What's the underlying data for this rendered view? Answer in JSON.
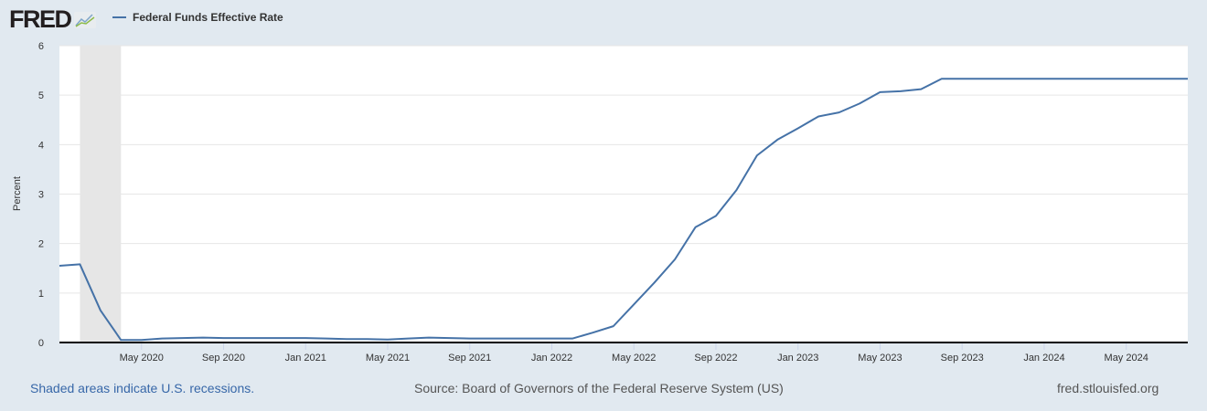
{
  "logo": {
    "text": "FRED"
  },
  "chart_data": {
    "type": "line",
    "title": "",
    "ylabel": "Percent",
    "xlabel": "",
    "ylim": [
      0,
      6
    ],
    "yticks": [
      "0",
      "1",
      "2",
      "3",
      "4",
      "5",
      "6"
    ],
    "grid": true,
    "legend_placement": "top-left",
    "x_start": "2020-01",
    "xticks": [
      {
        "month": "2020-05",
        "label": "May 2020"
      },
      {
        "month": "2020-09",
        "label": "Sep 2020"
      },
      {
        "month": "2021-01",
        "label": "Jan 2021"
      },
      {
        "month": "2021-05",
        "label": "May 2021"
      },
      {
        "month": "2021-09",
        "label": "Sep 2021"
      },
      {
        "month": "2022-01",
        "label": "Jan 2022"
      },
      {
        "month": "2022-05",
        "label": "May 2022"
      },
      {
        "month": "2022-09",
        "label": "Sep 2022"
      },
      {
        "month": "2023-01",
        "label": "Jan 2023"
      },
      {
        "month": "2023-05",
        "label": "May 2023"
      },
      {
        "month": "2023-09",
        "label": "Sep 2023"
      },
      {
        "month": "2024-01",
        "label": "Jan 2024"
      },
      {
        "month": "2024-05",
        "label": "May 2024"
      }
    ],
    "recessions": [
      {
        "start": "2020-02",
        "end": "2020-04"
      }
    ],
    "series": [
      {
        "name": "Federal Funds Effective Rate",
        "color": "#4572a7",
        "x": [
          "2020-01",
          "2020-02",
          "2020-03",
          "2020-04",
          "2020-05",
          "2020-06",
          "2020-07",
          "2020-08",
          "2020-09",
          "2020-10",
          "2020-11",
          "2020-12",
          "2021-01",
          "2021-02",
          "2021-03",
          "2021-04",
          "2021-05",
          "2021-06",
          "2021-07",
          "2021-08",
          "2021-09",
          "2021-10",
          "2021-11",
          "2021-12",
          "2022-01",
          "2022-02",
          "2022-03",
          "2022-04",
          "2022-05",
          "2022-06",
          "2022-07",
          "2022-08",
          "2022-09",
          "2022-10",
          "2022-11",
          "2022-12",
          "2023-01",
          "2023-02",
          "2023-03",
          "2023-04",
          "2023-05",
          "2023-06",
          "2023-07",
          "2023-08",
          "2023-09",
          "2023-10",
          "2023-11",
          "2023-12",
          "2024-01",
          "2024-02",
          "2024-03",
          "2024-04",
          "2024-05",
          "2024-06",
          "2024-07",
          "2024-08"
        ],
        "values": [
          1.55,
          1.58,
          0.65,
          0.05,
          0.05,
          0.08,
          0.09,
          0.1,
          0.09,
          0.09,
          0.09,
          0.09,
          0.09,
          0.08,
          0.07,
          0.07,
          0.06,
          0.08,
          0.1,
          0.09,
          0.08,
          0.08,
          0.08,
          0.08,
          0.08,
          0.08,
          0.2,
          0.33,
          0.77,
          1.21,
          1.68,
          2.33,
          2.56,
          3.08,
          3.78,
          4.1,
          4.33,
          4.57,
          4.65,
          4.83,
          5.06,
          5.08,
          5.12,
          5.33,
          5.33,
          5.33,
          5.33,
          5.33,
          5.33,
          5.33,
          5.33,
          5.33,
          5.33,
          5.33,
          5.33,
          5.33
        ]
      }
    ]
  },
  "footer": {
    "recession_note": "Shaded areas indicate U.S. recessions.",
    "source": "Source: Board of Governors of the Federal Reserve System (US)",
    "site": "fred.stlouisfed.org"
  }
}
